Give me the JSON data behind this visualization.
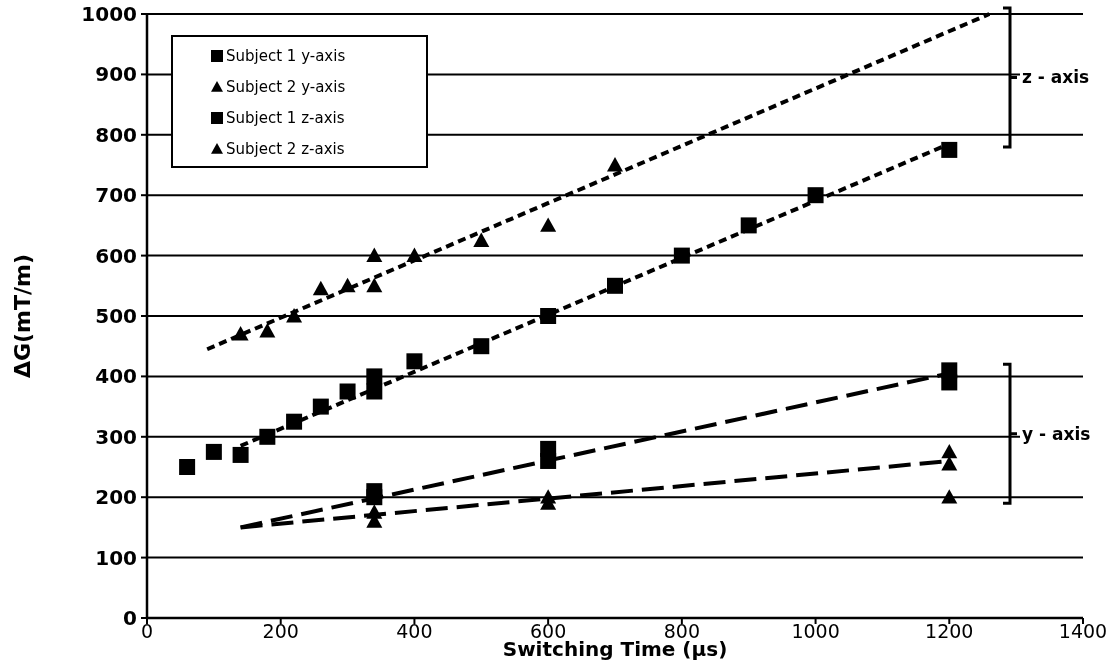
{
  "chart_data": {
    "type": "scatter",
    "xlabel": "Switching Time (μs)",
    "ylabel": "ΔG(mT/m)",
    "xlim": [
      0,
      1400
    ],
    "xticks": [
      0,
      200,
      400,
      600,
      800,
      1000,
      1200,
      1400
    ],
    "ylim": [
      0,
      1000
    ],
    "yticks": [
      0,
      100,
      200,
      300,
      400,
      500,
      600,
      700,
      800,
      900,
      1000
    ],
    "grid": "y",
    "legend": "top left",
    "annotations": [
      "z - axis",
      "y - axis"
    ],
    "series": [
      {
        "name": "Subject 1 y-axis",
        "color": "#000000",
        "marker": "square",
        "x": [
          340,
          340,
          600,
          600,
          1200,
          1200
        ],
        "values": [
          210,
          200,
          280,
          260,
          410,
          390
        ]
      },
      {
        "name": "Subject 2 y-axis",
        "color": "#000000",
        "marker": "triangle",
        "x": [
          340,
          340,
          600,
          600,
          1200,
          1200,
          1200
        ],
        "values": [
          175,
          160,
          200,
          190,
          275,
          255,
          200
        ]
      },
      {
        "name": "Subject 1 z-axis",
        "color": "#000000",
        "marker": "square",
        "x": [
          60,
          100,
          140,
          180,
          220,
          260,
          300,
          340,
          340,
          400,
          500,
          600,
          700,
          800,
          900,
          1000,
          1200
        ],
        "values": [
          250,
          275,
          270,
          300,
          325,
          350,
          375,
          400,
          375,
          425,
          450,
          500,
          550,
          600,
          650,
          700,
          775
        ]
      },
      {
        "name": "Subject 2 z-axis",
        "color": "#000000",
        "marker": "triangle",
        "x": [
          140,
          180,
          220,
          260,
          300,
          340,
          340,
          400,
          500,
          600,
          700
        ],
        "values": [
          470,
          475,
          500,
          545,
          550,
          600,
          550,
          600,
          625,
          650,
          750
        ]
      },
      {
        "type": "line",
        "color": "#000000",
        "line_style": "dashed",
        "x": [
          140,
          1200
        ],
        "values": [
          150,
          405
        ]
      },
      {
        "type": "line",
        "color": "#000000",
        "line_style": "dashed",
        "x": [
          140,
          1200
        ],
        "values": [
          150,
          260
        ]
      },
      {
        "type": "line",
        "color": "#000000",
        "line_style": "dotted",
        "x": [
          140,
          1200
        ],
        "values": [
          285,
          785
        ]
      },
      {
        "type": "line",
        "color": "#000000",
        "line_style": "dotted",
        "x": [
          90,
          1260
        ],
        "values": [
          445,
          1000
        ]
      }
    ]
  }
}
